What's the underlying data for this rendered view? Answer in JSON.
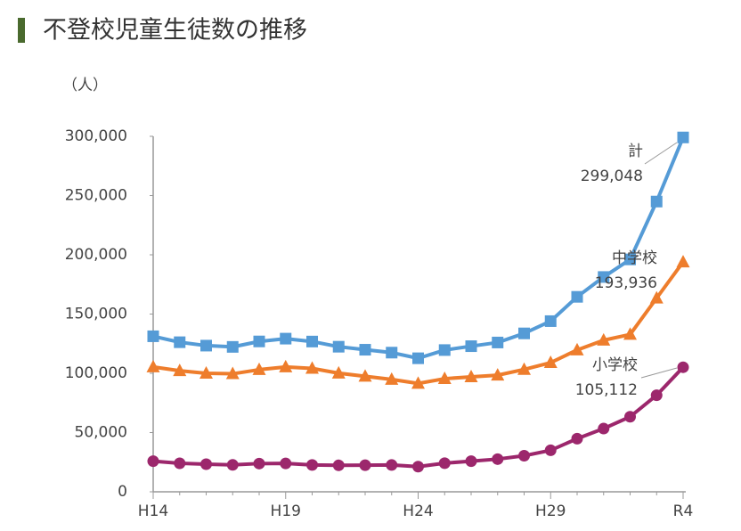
{
  "chart_data": {
    "type": "line",
    "title": "不登校児童生徒数の推移",
    "y_label": "（人）",
    "categories": [
      "H14",
      null,
      null,
      null,
      null,
      "H19",
      null,
      null,
      null,
      null,
      "H24",
      null,
      null,
      null,
      null,
      "H29",
      null,
      null,
      null,
      null,
      "R4"
    ],
    "ylim": [
      0,
      300000
    ],
    "yticks": [
      0,
      {
        "value": 50000,
        "label": "50,000"
      },
      {
        "value": 100000,
        "label": "100,000"
      },
      {
        "value": 150000,
        "label": "150,000"
      },
      {
        "value": 200000,
        "label": "200,000"
      },
      {
        "value": 250000,
        "label": "250,000"
      },
      {
        "value": 300000,
        "label": "300,000"
      }
    ],
    "grid": false,
    "series": [
      {
        "name": "計",
        "color": "#559bd6",
        "marker": "square",
        "values": [
          131252,
          126226,
          123358,
          122287,
          126894,
          129255,
          126805,
          122432,
          119891,
          117458,
          112689,
          119617,
          122897,
          125991,
          133683,
          144031,
          164528,
          181272,
          196127,
          244940,
          299048
        ],
        "value_labels": [
          null,
          null,
          null,
          null,
          null,
          null,
          null,
          null,
          null,
          null,
          null,
          null,
          null,
          null,
          null,
          null,
          null,
          null,
          null,
          null,
          "299,048"
        ]
      },
      {
        "name": "中学校",
        "color": "#ee7d2c",
        "marker": "triangle",
        "values": [
          105383,
          102149,
          100040,
          99578,
          103069,
          105328,
          104153,
          100105,
          97428,
          94836,
          91446,
          95442,
          97033,
          98408,
          103235,
          108999,
          119687,
          127922,
          132777,
          163442,
          193936
        ],
        "value_labels": [
          null,
          null,
          null,
          null,
          null,
          null,
          null,
          null,
          null,
          null,
          null,
          null,
          null,
          null,
          null,
          null,
          null,
          null,
          null,
          null,
          "193,936"
        ]
      },
      {
        "name": "小学校",
        "color": "#9c276c",
        "marker": "circle",
        "values": [
          25869,
          24077,
          23318,
          22709,
          23825,
          23927,
          22652,
          22327,
          22463,
          22622,
          21243,
          24175,
          25864,
          27583,
          30448,
          35032,
          44841,
          53350,
          63350,
          81498,
          105112
        ],
        "value_labels": [
          null,
          null,
          null,
          null,
          null,
          null,
          null,
          null,
          null,
          null,
          null,
          null,
          null,
          null,
          null,
          null,
          null,
          null,
          null,
          null,
          "105,112"
        ]
      }
    ]
  }
}
